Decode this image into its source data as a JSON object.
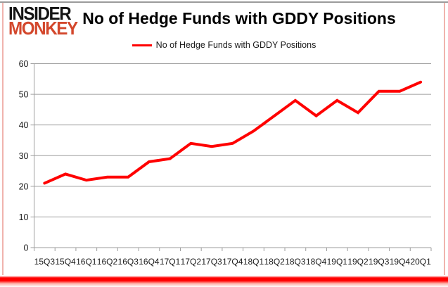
{
  "logo": {
    "line1": "INSIDER",
    "line2": "MONKEY"
  },
  "header": {
    "title": "No of Hedge Funds with GDDY Positions"
  },
  "legend": {
    "label": "No of Hedge Funds with GDDY Positions"
  },
  "colors": {
    "series": "#ff0000",
    "grid": "#9e9e9e",
    "axis_text": "#1a1a1a",
    "logo_black": "#141414",
    "logo_red": "#d3472c"
  },
  "chart_data": {
    "type": "line",
    "title": "No of Hedge Funds with GDDY Positions",
    "categories": [
      "15Q3",
      "15Q4",
      "16Q1",
      "16Q2",
      "16Q3",
      "16Q4",
      "17Q1",
      "17Q2",
      "17Q3",
      "17Q4",
      "18Q1",
      "18Q2",
      "18Q3",
      "18Q4",
      "19Q1",
      "19Q2",
      "19Q3",
      "19Q4",
      "20Q1"
    ],
    "values": [
      21,
      24,
      22,
      23,
      23,
      28,
      29,
      34,
      33,
      34,
      38,
      43,
      48,
      43,
      48,
      44,
      51,
      51,
      54
    ],
    "series_name": "No of Hedge Funds with GDDY Positions",
    "xlabel": "",
    "ylabel": "",
    "ylim": [
      0,
      60
    ],
    "ytick_step": 10,
    "yticks": [
      0,
      10,
      20,
      30,
      40,
      50,
      60
    ],
    "grid": true,
    "legend_position": "top-center"
  }
}
